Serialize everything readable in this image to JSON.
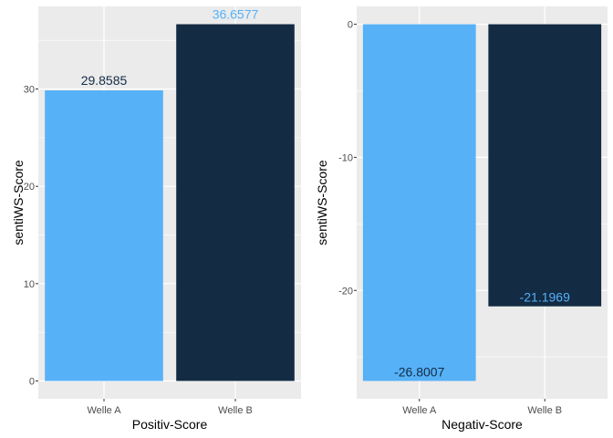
{
  "colors": {
    "panel_bg": "#EBEBEB",
    "grid_major": "#FFFFFF",
    "welle_a": "#56B1F7",
    "welle_b": "#132B43"
  },
  "chart_data": [
    {
      "type": "bar",
      "categories": [
        "Welle A",
        "Welle B"
      ],
      "values": [
        29.8585,
        36.6577
      ],
      "value_labels": [
        "29.8585",
        "36.6577"
      ],
      "label_colors": [
        "#132B43",
        "#56B1F7"
      ],
      "bar_colors": [
        "#56B1F7",
        "#132B43"
      ],
      "xlabel": "Positiv-Score",
      "ylabel": "sentiWS-Score",
      "ylim": [
        -1.83,
        38.49
      ],
      "yticks": [
        0,
        10,
        20,
        30
      ],
      "ytick_labels": [
        "0",
        "10",
        "20",
        "30"
      ],
      "grid": true,
      "legend": "none"
    },
    {
      "type": "bar",
      "categories": [
        "Welle A",
        "Welle B"
      ],
      "values": [
        -26.8007,
        -21.1969
      ],
      "value_labels": [
        "-26.8007",
        "-21.1969"
      ],
      "label_colors": [
        "#132B43",
        "#56B1F7"
      ],
      "bar_colors": [
        "#56B1F7",
        "#132B43"
      ],
      "xlabel": "Negativ-Score",
      "ylabel": "sentiWS-Score",
      "ylim": [
        -28.14,
        1.34
      ],
      "yticks": [
        -20,
        -10,
        0
      ],
      "ytick_labels": [
        "-20",
        "-10",
        "0"
      ],
      "grid": true,
      "legend": "none"
    }
  ]
}
